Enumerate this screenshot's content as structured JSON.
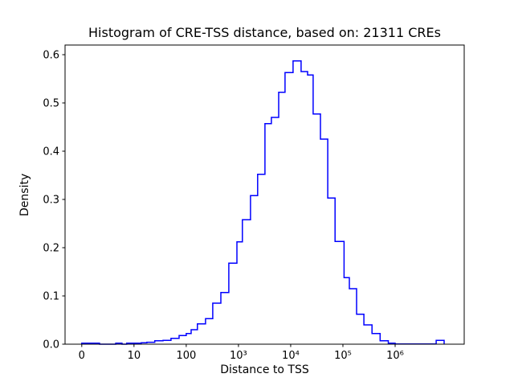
{
  "figure": {
    "background": "#ffffff"
  },
  "chart_data": {
    "type": "step-histogram",
    "title": "Histogram of CRE-TSS distance, based on: 21311 CREs",
    "xlabel": "Distance to TSS",
    "ylabel": "Density",
    "n_cres_in_title": "21311",
    "line_color": "#0000ff",
    "axis_color": "#000000",
    "x_scale": "symlog",
    "x_linthresh": 10,
    "xlim": [
      -3.2,
      21000000
    ],
    "ylim": [
      0,
      0.62
    ],
    "grid": false,
    "legend": "none",
    "x_ticks": [
      {
        "value": 0,
        "label": "0"
      },
      {
        "value": 10,
        "label": "10"
      },
      {
        "value": 100,
        "label": "100"
      },
      {
        "value": 1000,
        "label": "10³"
      },
      {
        "value": 10000,
        "label": "10⁴"
      },
      {
        "value": 100000,
        "label": "10⁵"
      },
      {
        "value": 1000000,
        "label": "10⁶"
      }
    ],
    "y_ticks": [
      {
        "value": 0.0,
        "label": "0.0"
      },
      {
        "value": 0.1,
        "label": "0.1"
      },
      {
        "value": 0.2,
        "label": "0.2"
      },
      {
        "value": 0.3,
        "label": "0.3"
      },
      {
        "value": 0.4,
        "label": "0.4"
      },
      {
        "value": 0.5,
        "label": "0.5"
      },
      {
        "value": 0.6,
        "label": "0.6"
      }
    ],
    "bin_edges": [
      0,
      3.4,
      6.5,
      7.7,
      8.6,
      13.8,
      17.6,
      25,
      36,
      51,
      73,
      100,
      124,
      164,
      234,
      322,
      460,
      653,
      933,
      1190,
      1700,
      2330,
      3220,
      4270,
      5890,
      7800,
      11100,
      15800,
      21100,
      26900,
      37200,
      51300,
      70800,
      105000,
      133000,
      183000,
      252000,
      361000,
      516000,
      740000,
      1000000,
      6100000,
      8670000
    ],
    "densities": [
      0.002,
      0,
      0.002,
      0,
      0.002,
      0.003,
      0.004,
      0.007,
      0.008,
      0.012,
      0.018,
      0.022,
      0.03,
      0.042,
      0.053,
      0.085,
      0.107,
      0.168,
      0.212,
      0.258,
      0.308,
      0.352,
      0.457,
      0.47,
      0.522,
      0.563,
      0.587,
      0.565,
      0.558,
      0.477,
      0.425,
      0.303,
      0.213,
      0.138,
      0.115,
      0.062,
      0.04,
      0.022,
      0.007,
      0.002,
      0.0005,
      0.008
    ]
  }
}
